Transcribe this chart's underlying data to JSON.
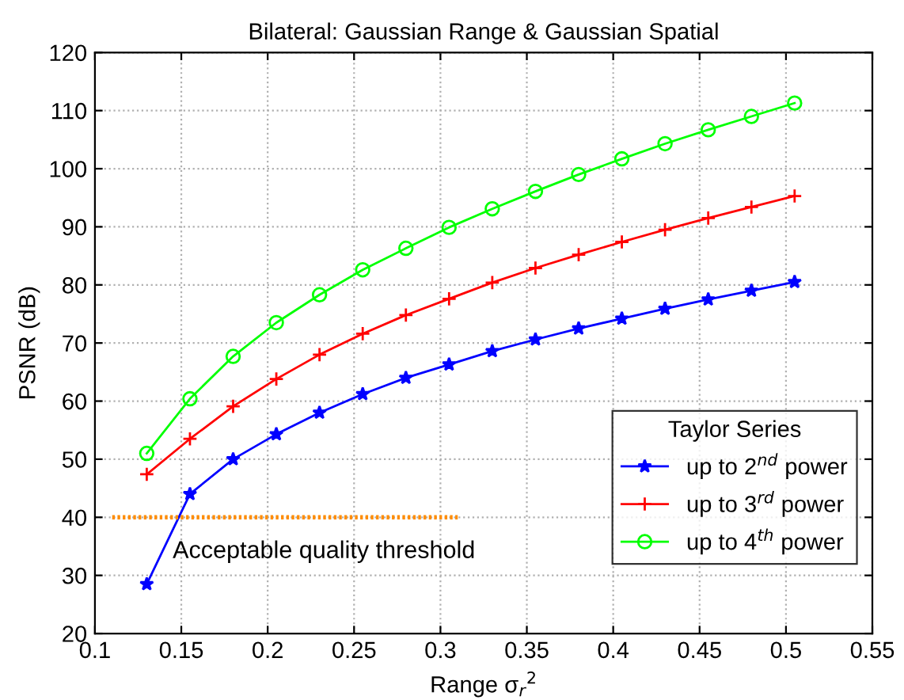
{
  "chart_data": {
    "type": "line",
    "title": "Bilateral: Gaussian Range & Gaussian Spatial",
    "xlabel": "Range σ$_{r}$$^{2}$",
    "ylabel": "PSNR (dB)",
    "legend_title": "Taylor Series",
    "x": [
      0.13,
      0.155,
      0.18,
      0.205,
      0.23,
      0.255,
      0.28,
      0.305,
      0.33,
      0.355,
      0.38,
      0.405,
      0.43,
      0.455,
      0.48,
      0.505
    ],
    "series": [
      {
        "name": "up to 2$^{nd}$ power",
        "color": "#0000ff",
        "marker": "star",
        "values": [
          28.5,
          44,
          50,
          54.3,
          58,
          61.2,
          64,
          66.3,
          68.6,
          70.6,
          72.5,
          74.2,
          75.9,
          77.5,
          79,
          80.5
        ]
      },
      {
        "name": "up to 3$^{rd}$ power",
        "color": "#ff0000",
        "marker": "cross",
        "values": [
          47.4,
          53.5,
          59.1,
          63.8,
          68,
          71.6,
          74.8,
          77.6,
          80.4,
          82.9,
          85.2,
          87.4,
          89.5,
          91.5,
          93.4,
          95.3
        ]
      },
      {
        "name": "up to 4$^{th}$ power",
        "color": "#00ff00",
        "marker": "circle",
        "values": [
          51,
          60.4,
          67.7,
          73.5,
          78.3,
          82.6,
          86.3,
          89.9,
          93.1,
          96.1,
          99,
          101.7,
          104.3,
          106.7,
          109,
          111.3
        ]
      },
      {
        "color": "#ff8c00",
        "marker": "none",
        "line_style": "dotted",
        "x": [
          0.11,
          0.31
        ],
        "values": [
          40,
          40
        ]
      }
    ],
    "annotations": [
      "Acceptable quality threshold"
    ],
    "xlim": [
      0.1,
      0.55
    ],
    "xticks": [
      0.1,
      0.15,
      0.2,
      0.25,
      0.3,
      0.35,
      0.4,
      0.45,
      0.5,
      0.55
    ],
    "ylim": [
      20,
      120
    ],
    "yticks": [
      20,
      30,
      40,
      50,
      60,
      70,
      80,
      90,
      100,
      110,
      120
    ],
    "grid": true,
    "legend": "bottom right"
  }
}
